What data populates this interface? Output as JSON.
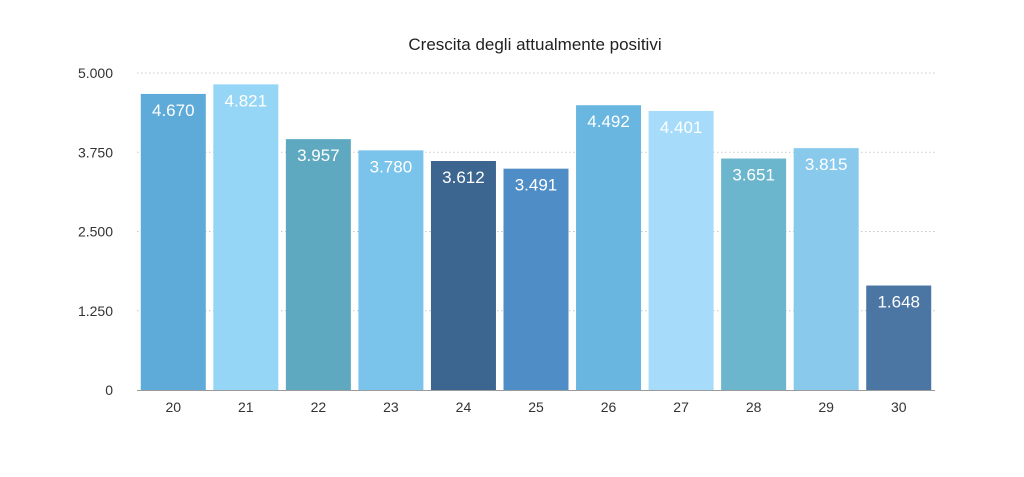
{
  "chart_data": {
    "type": "bar",
    "title": "Crescita degli attualmente positivi",
    "xlabel": "",
    "ylabel": "",
    "categories": [
      "20",
      "21",
      "22",
      "23",
      "24",
      "25",
      "26",
      "27",
      "28",
      "29",
      "30"
    ],
    "values": [
      4670,
      4821,
      3957,
      3780,
      3612,
      3491,
      4492,
      4401,
      3651,
      3815,
      1648
    ],
    "value_labels": [
      "4.670",
      "4.821",
      "3.957",
      "3.780",
      "3.612",
      "3.491",
      "4.492",
      "4.401",
      "3.651",
      "3.815",
      "1.648"
    ],
    "ylim": [
      0,
      5000
    ],
    "yticks": [
      0,
      1250,
      2500,
      3750,
      5000
    ],
    "ytick_labels": [
      "0",
      "1.250",
      "2.500",
      "3.750",
      "5.000"
    ],
    "bar_colors": [
      "#5eaad8",
      "#95d6f7",
      "#5ea9c0",
      "#7ac4eb",
      "#3c6690",
      "#4f8dc7",
      "#69b6e0",
      "#a6dcfa",
      "#6bb6cc",
      "#89c9ec",
      "#4b76a3"
    ],
    "grid": true,
    "legend": "none"
  }
}
